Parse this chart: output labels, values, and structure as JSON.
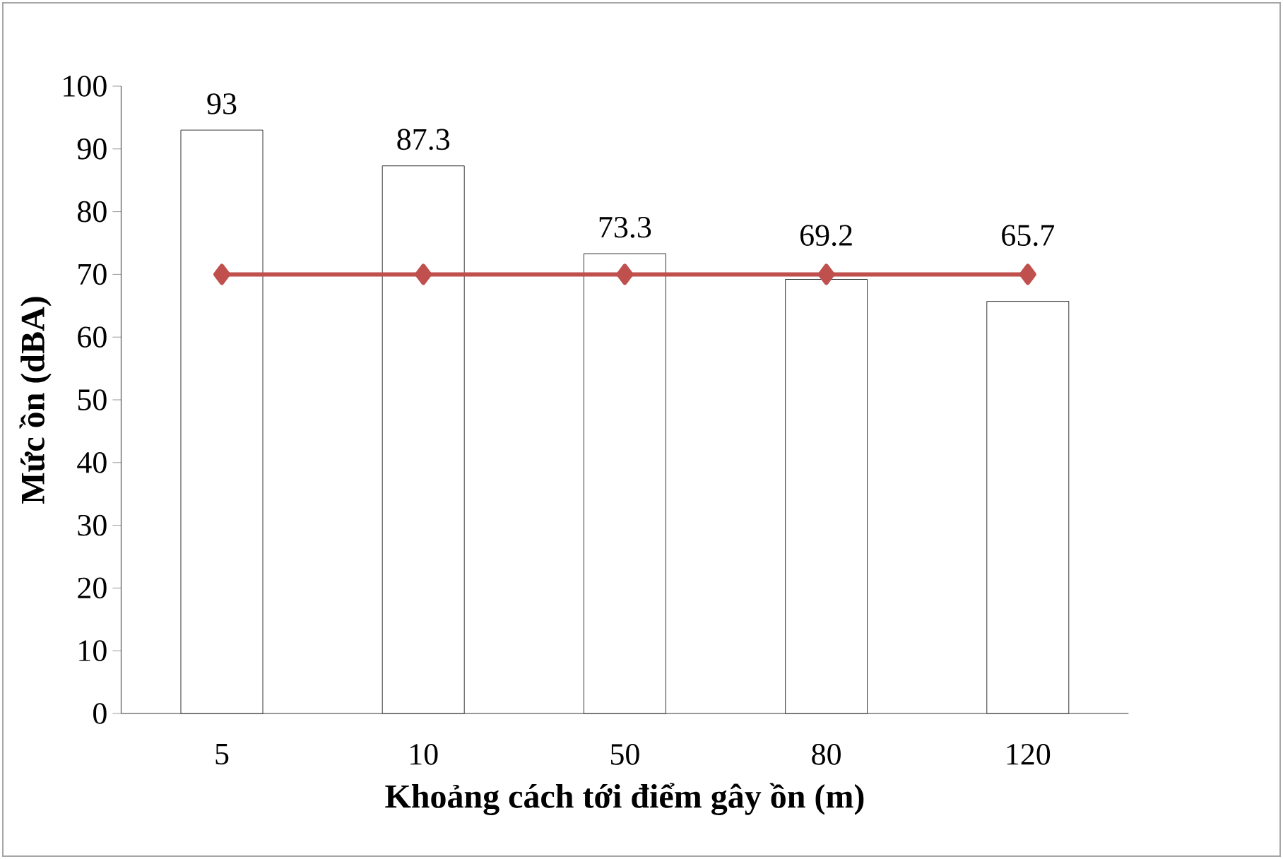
{
  "chart_data": {
    "type": "bar",
    "xlabel": "Khoảng cách tới điểm gây ồn (m)",
    "ylabel": "Mức ồn (dBA)",
    "categories": [
      "5",
      "10",
      "50",
      "80",
      "120"
    ],
    "series": [
      {
        "color": "#ffffff",
        "values": [
          93,
          87.3,
          73.3,
          69.2,
          65.7
        ],
        "value_labels": [
          "93",
          "87.3",
          "73.3",
          "69.2",
          "65.7"
        ]
      },
      {
        "type": "line",
        "color": "#c0504d",
        "values": [
          70,
          70,
          70,
          70,
          70
        ],
        "marker": "diamond",
        "line_style": "solid"
      }
    ],
    "ylim": [
      0,
      100
    ],
    "yticks": [
      0,
      10,
      20,
      30,
      40,
      50,
      60,
      70,
      80,
      90,
      100
    ],
    "grid": false
  }
}
